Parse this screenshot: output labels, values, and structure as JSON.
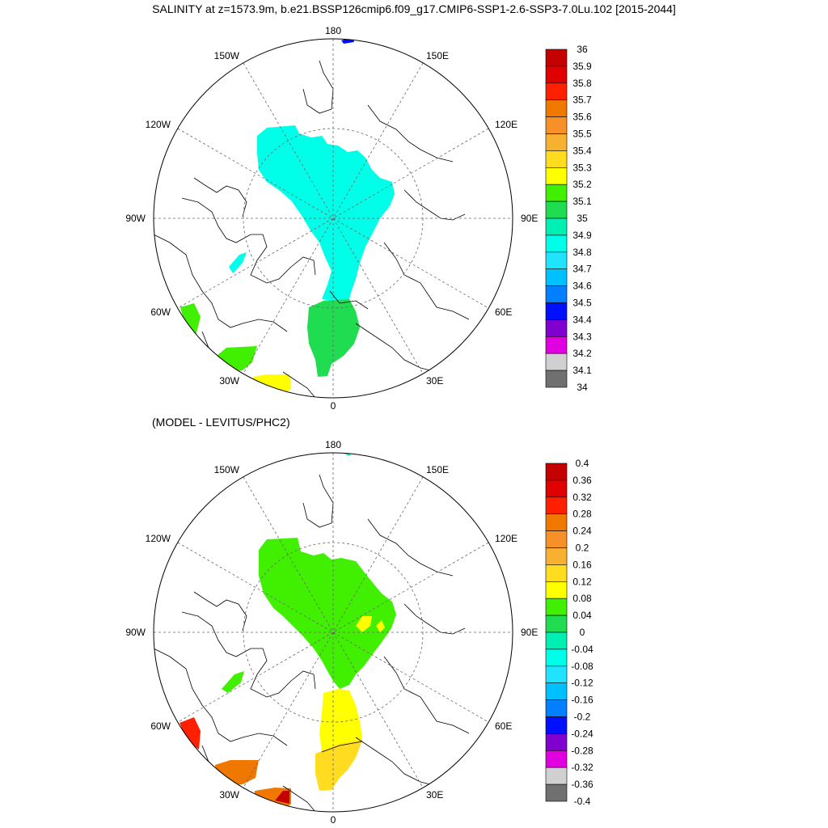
{
  "title": "SALINITY at z=1573.9m, b.e21.BSSP126cmip6.f09_g17.CMIP6-SSP1-2.6-SSP3-7.0Lu.102 [2015-2044]",
  "subtitle": "(MODEL - LEVITUS/PHC2)",
  "longitude_labels": [
    "180",
    "150E",
    "120E",
    "90E",
    "60E",
    "30E",
    "0",
    "30W",
    "60W",
    "90W",
    "120W",
    "150W"
  ],
  "panels": [
    {
      "name": "salinity",
      "colorbar": {
        "labels": [
          "36",
          "35.9",
          "35.8",
          "35.7",
          "35.6",
          "35.5",
          "35.4",
          "35.3",
          "35.2",
          "35.1",
          "35",
          "34.9",
          "34.8",
          "34.7",
          "34.6",
          "34.5",
          "34.4",
          "34.3",
          "34.2",
          "34.1",
          "34"
        ],
        "colors": [
          "#c40000",
          "#e00000",
          "#ff2000",
          "#f07800",
          "#f89028",
          "#f8b030",
          "#ffdc20",
          "#ffff00",
          "#40f000",
          "#20dc50",
          "#00f0b4",
          "#00ffe8",
          "#20e4ff",
          "#00c0ff",
          "#0080ff",
          "#0010ff",
          "#8000d0",
          "#e000e0",
          "#d0d0d0",
          "#707070"
        ]
      }
    },
    {
      "name": "difference",
      "colorbar": {
        "labels": [
          "0.4",
          "0.36",
          "0.32",
          "0.28",
          "0.24",
          "0.2",
          "0.16",
          "0.12",
          "0.08",
          "0.04",
          "0",
          "-0.04",
          "-0.08",
          "-0.12",
          "-0.16",
          "-0.2",
          "-0.24",
          "-0.28",
          "-0.32",
          "-0.36",
          "-0.4"
        ],
        "colors": [
          "#c40000",
          "#e00000",
          "#ff2000",
          "#f07800",
          "#f89028",
          "#f8b030",
          "#ffdc20",
          "#ffff00",
          "#40f000",
          "#20dc50",
          "#00f0b4",
          "#00ffe8",
          "#20e4ff",
          "#00c0ff",
          "#0080ff",
          "#0010ff",
          "#8000d0",
          "#e000e0",
          "#d0d0d0",
          "#707070"
        ]
      }
    }
  ]
}
